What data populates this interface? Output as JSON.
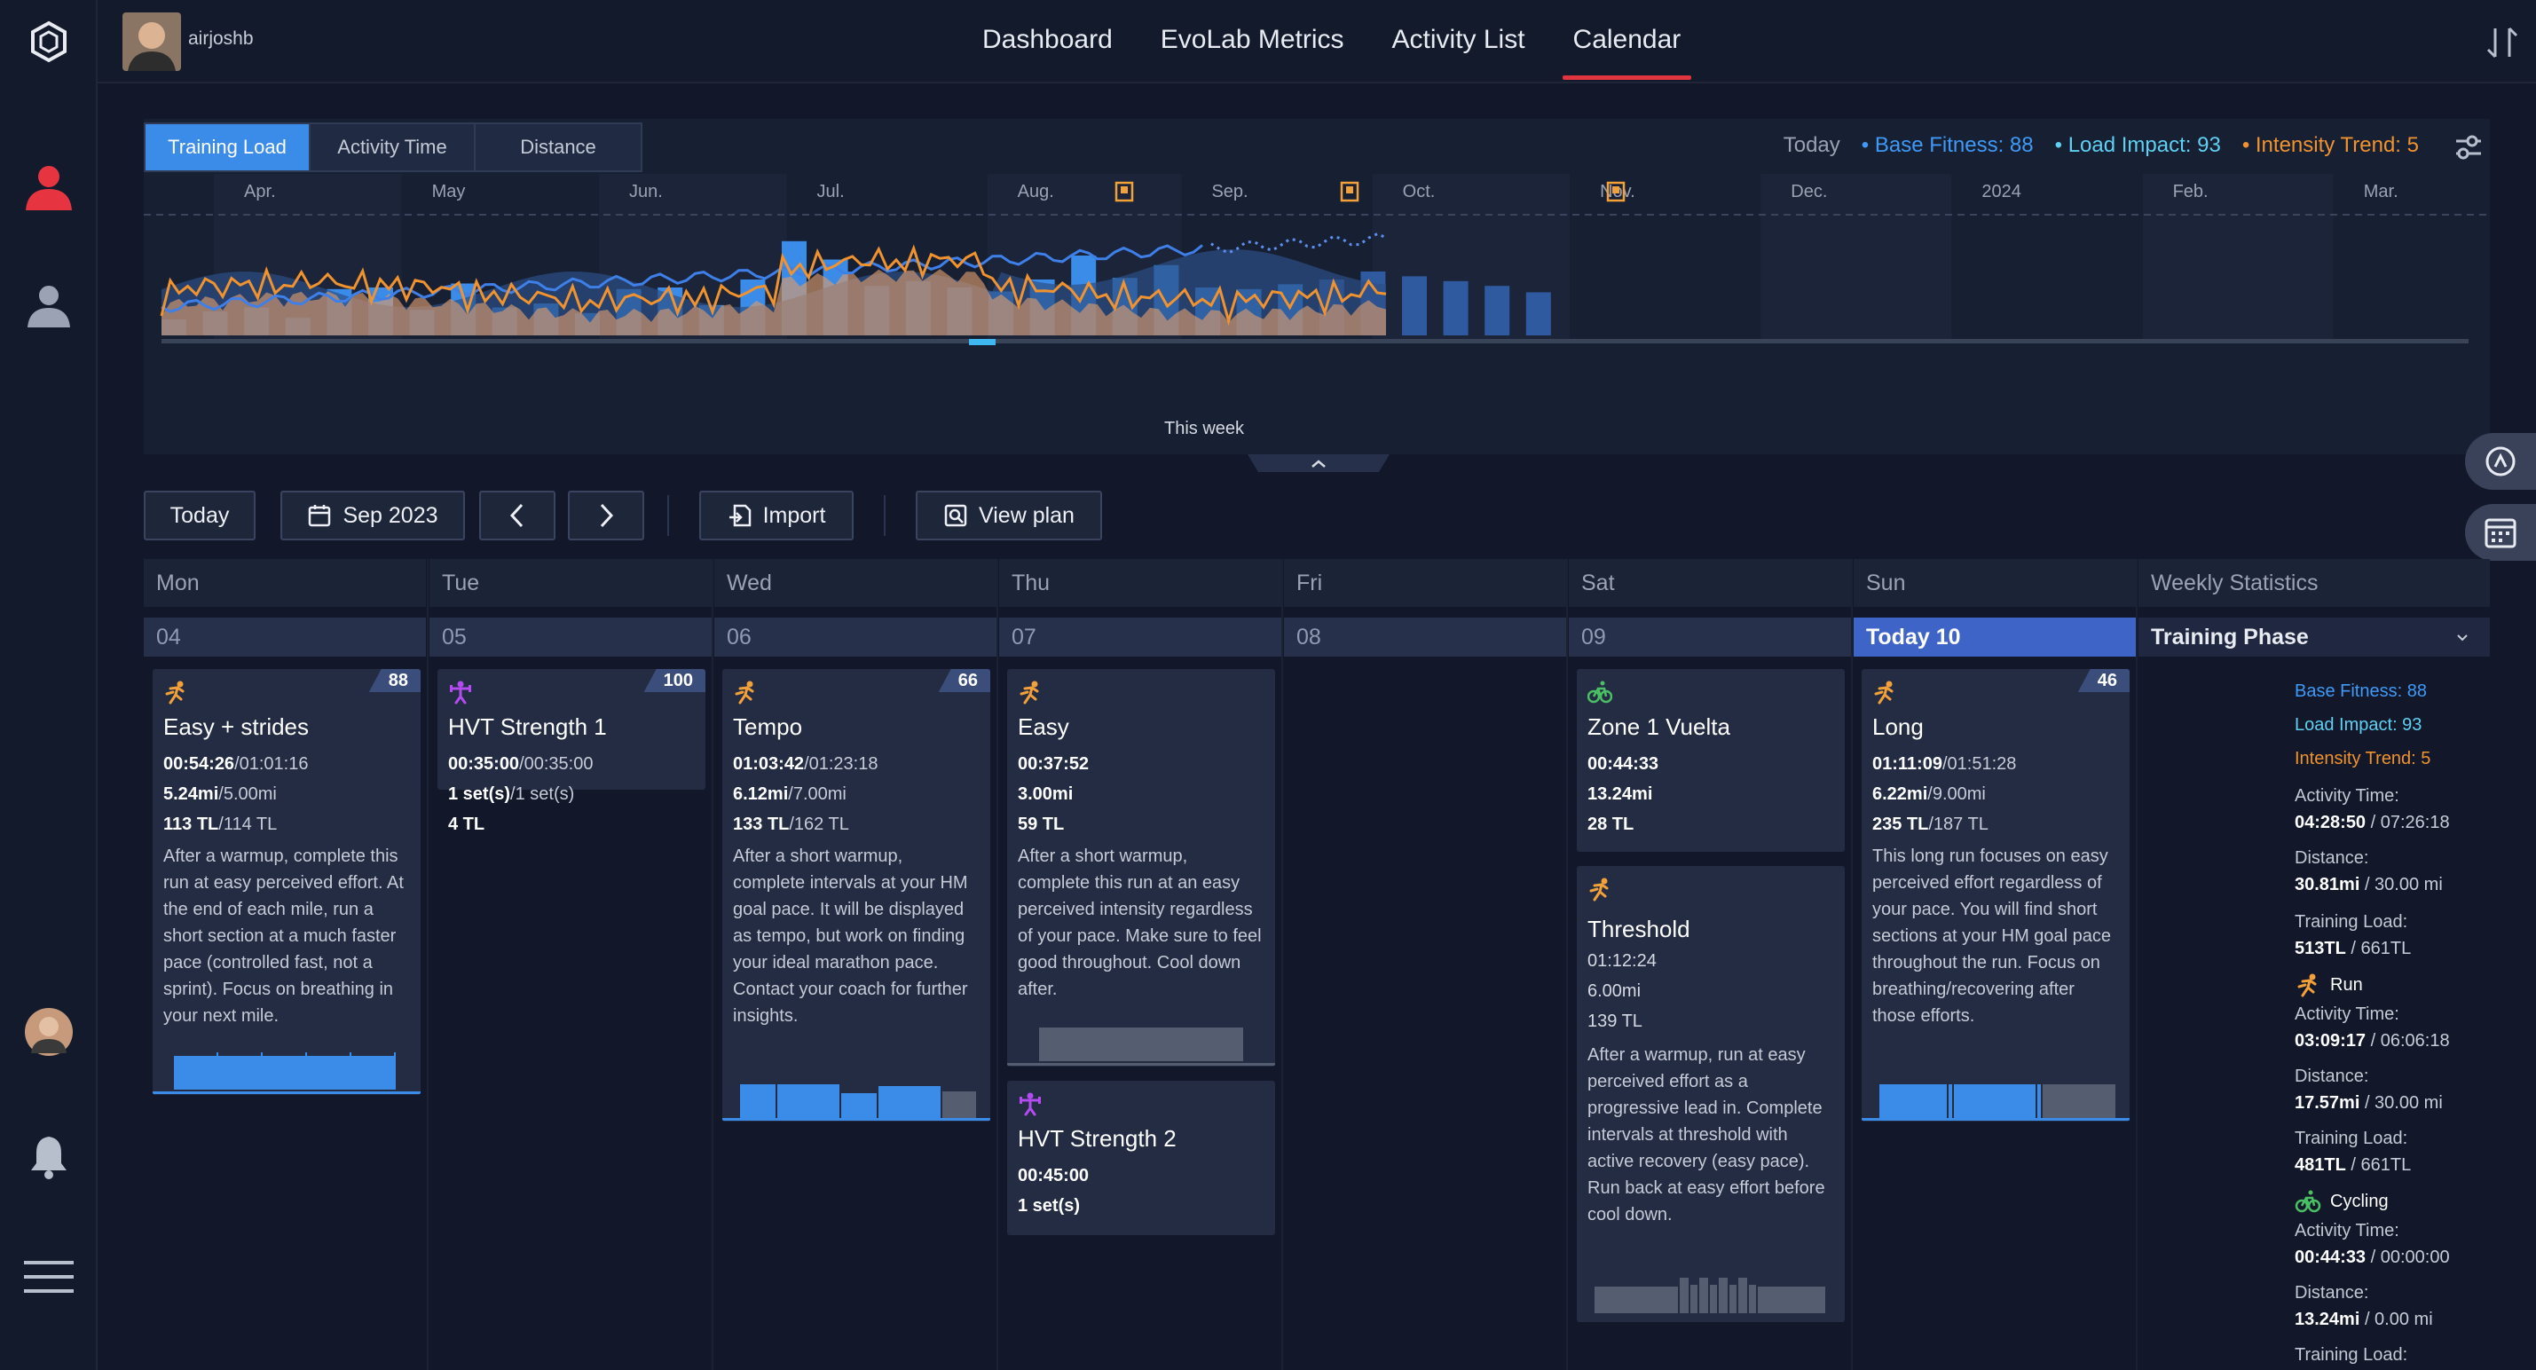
{
  "user": {
    "name": "airjoshb"
  },
  "nav": [
    "Dashboard",
    "EvoLab Metrics",
    "Activity List",
    "Calendar"
  ],
  "chart": {
    "tabs": [
      "Training Load",
      "Activity Time",
      "Distance"
    ],
    "legend": {
      "today": "Today",
      "base": "Base Fitness: 88",
      "load": "Load Impact: 93",
      "intensity": "Intensity Trend: 5"
    },
    "months": [
      "Apr.",
      "May",
      "Jun.",
      "Jul.",
      "Aug.",
      "Sep.",
      "Oct.",
      "Nov.",
      "Dec.",
      "2024",
      "Feb.",
      "Mar."
    ],
    "this_week": "This week"
  },
  "colors": {
    "accent": "#3a8ce8",
    "base": "#3f9af7",
    "load": "#5fd0f2",
    "intensity": "#f0932f",
    "nav_underline": "#e0343f",
    "today_header": "#3f64c8"
  },
  "toolbar": {
    "today": "Today",
    "month": "Sep 2023",
    "import": "Import",
    "view_plan": "View plan"
  },
  "days": [
    "Mon",
    "Tue",
    "Wed",
    "Thu",
    "Fri",
    "Sat",
    "Sun",
    "Weekly Statistics"
  ],
  "dates": [
    "04",
    "05",
    "06",
    "07",
    "08",
    "09",
    "Today 10"
  ],
  "phase": "Training Phase",
  "cards": {
    "mon": {
      "badge": "88",
      "title": "Easy + strides",
      "time": "00:54:26",
      "time_plan": "/01:01:16",
      "dist": "5.24mi",
      "dist_plan": "/5.00mi",
      "tl": "113 TL",
      "tl_plan": "/114 TL",
      "desc": "After a warmup, complete this run at easy perceived effort. At the end of each mile, run a short section at a much faster pace (controlled fast, not a sprint). Focus on breathing in your next mile."
    },
    "tue": {
      "badge": "100",
      "title": "HVT Strength 1",
      "time": "00:35:00",
      "time_plan": "/00:35:00",
      "sets": "1 set(s)",
      "sets_plan": "/1 set(s)",
      "tl": "4 TL"
    },
    "wed": {
      "badge": "66",
      "title": "Tempo",
      "time": "01:03:42",
      "time_plan": "/01:23:18",
      "dist": "6.12mi",
      "dist_plan": "/7.00mi",
      "tl": "133 TL",
      "tl_plan": "/162 TL",
      "desc": "After a short warmup, complete intervals at your HM goal pace. It will be displayed as tempo, but work on finding your ideal marathon pace. Contact your coach for further insights."
    },
    "thu1": {
      "title": "Easy",
      "time": "00:37:52",
      "dist": "3.00mi",
      "tl": "59 TL",
      "desc": "After a short warmup, complete this run at an easy perceived intensity regardless of your pace. Make sure to feel good throughout. Cool down after."
    },
    "thu2": {
      "title": "HVT Strength 2",
      "time": "00:45:00",
      "sets": "1 set(s)"
    },
    "sat1": {
      "title": "Zone 1 Vuelta",
      "time": "00:44:33",
      "dist": "13.24mi",
      "tl": "28 TL"
    },
    "sat2": {
      "title": "Threshold",
      "time": "01:12:24",
      "dist": "6.00mi",
      "tl": "139 TL",
      "desc": "After a warmup, run at easy perceived effort as a progressive lead in. Complete intervals at threshold with active recovery (easy pace). Run back at easy effort before cool down."
    },
    "sun": {
      "badge": "46",
      "title": "Long",
      "time": "01:11:09",
      "time_plan": "/01:51:28",
      "dist": "6.22mi",
      "dist_plan": "/9.00mi",
      "tl": "235 TL",
      "tl_plan": "/187 TL",
      "desc": "This long run focuses on easy perceived effort regardless of your pace. You will find short sections at your HM goal pace throughout the run. Focus on breathing/recovering after those efforts."
    }
  },
  "stats": {
    "base": "Base Fitness: 88",
    "load": "Load Impact: 93",
    "intensity": "Intensity Trend: 5",
    "activity_time_label": "Activity Time:",
    "distance_label": "Distance:",
    "training_load_label": "Training Load:",
    "total": {
      "time": "04:28:50",
      "time_plan": " / 07:26:18",
      "dist": "30.81mi",
      "dist_plan": " / 30.00 mi",
      "tl": "513TL",
      "tl_plan": " / 661TL"
    },
    "run": {
      "label": "Run",
      "time": "03:09:17",
      "time_plan": " / 06:06:18",
      "dist": "17.57mi",
      "dist_plan": " / 30.00 mi",
      "tl": "481TL",
      "tl_plan": " / 661TL"
    },
    "cycling": {
      "label": "Cycling",
      "time": "00:44:33",
      "time_plan": " / 00:00:00",
      "dist": "13.24mi",
      "dist_plan": " / 0.00 mi",
      "tl_label": "Training Load:"
    }
  }
}
